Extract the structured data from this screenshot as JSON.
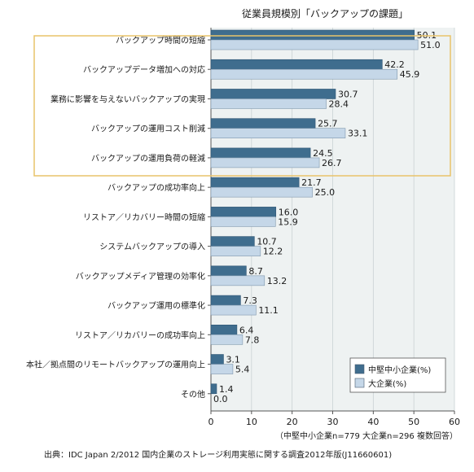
{
  "chart_data": {
    "type": "bar",
    "orientation": "horizontal",
    "title": "従業員規模別「バックアップの課題」",
    "categories": [
      "バックアップ時間の短縮",
      "バックアップデータ増加への対応",
      "業務に影響を与えないバックアップの実現",
      "バックアップの運用コスト削減",
      "バックアップの運用負荷の軽減",
      "バックアップの成功率向上",
      "リストア／リカバリー時間の短縮",
      "システムバックアップの導入",
      "バックアップメディア管理の効率化",
      "バックアップ運用の標準化",
      "リストア／リカバリーの成功率向上",
      "本社／拠点間のリモートバックアップの運用向上",
      "その他"
    ],
    "series": [
      {
        "name": "中堅中小企業(%)",
        "color": "#3f6d8e",
        "values": [
          50.1,
          42.2,
          30.7,
          25.7,
          24.5,
          21.7,
          16.0,
          10.7,
          8.7,
          7.3,
          6.4,
          3.1,
          1.4
        ]
      },
      {
        "name": "大企業(%)",
        "color": "#c5d7e8",
        "values": [
          51.0,
          45.9,
          28.4,
          33.1,
          26.7,
          25.0,
          15.9,
          12.2,
          13.2,
          11.1,
          7.8,
          5.4,
          0.0
        ]
      }
    ],
    "value_labels": [
      [
        "50.1",
        "42.2",
        "30.7",
        "25.7",
        "24.5",
        "21.7",
        "16.0",
        "10.7",
        "8.7",
        "7.3",
        "6.4",
        "3.1",
        "1.4"
      ],
      [
        "51.0",
        "45.9",
        "28.4",
        "33.1",
        "26.7",
        "25.0",
        "15.9",
        "12.2",
        "13.2",
        "11.1",
        "7.8",
        "5.4",
        "0.0"
      ]
    ],
    "xlim": [
      0,
      60
    ],
    "xticks": [
      "0",
      "10",
      "20",
      "30",
      "40",
      "50",
      "60"
    ],
    "highlight_color": "#e8c36a",
    "plot_background": "#eef2f2",
    "legend_position": "bottom-right",
    "note": "（中堅中小企業n=779 大企業n=296 複数回答）",
    "source": "出典：IDC Japan 2/2012 国内企業のストレージ利用実態に関する調査2012年版(J11660601)"
  }
}
